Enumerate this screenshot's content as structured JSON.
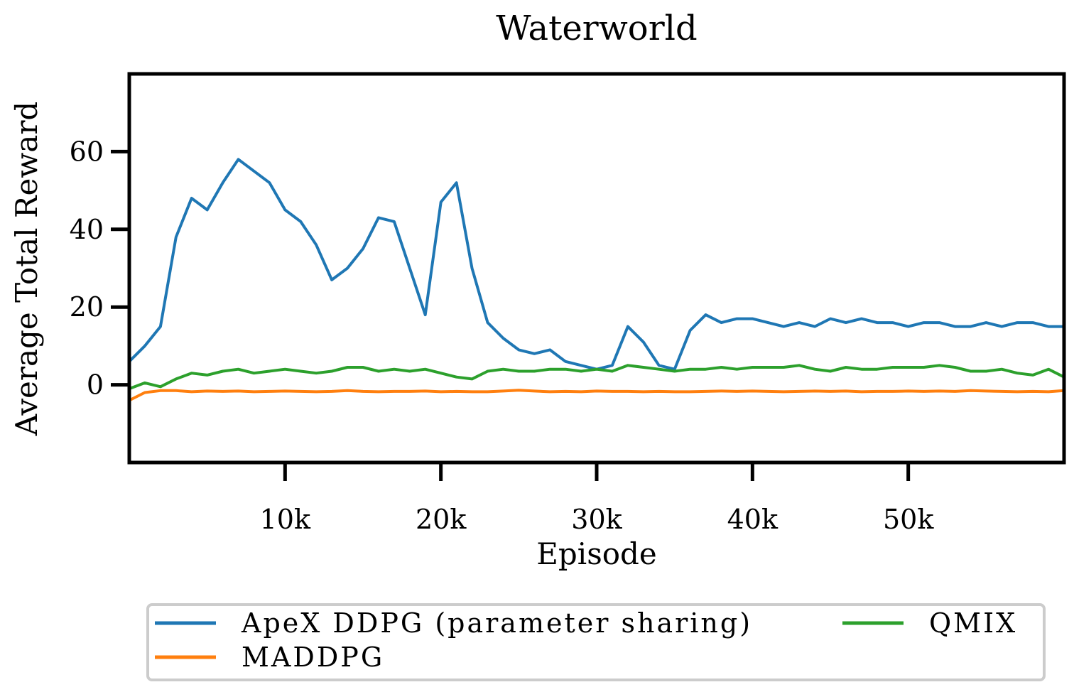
{
  "chart_data": {
    "type": "line",
    "title": "Waterworld",
    "xlabel": "Episode",
    "ylabel": "Average Total Reward",
    "xlim": [
      0,
      60000
    ],
    "ylim": [
      -20,
      80
    ],
    "xticks": [
      10000,
      20000,
      30000,
      40000,
      50000
    ],
    "xtick_labels": [
      "10k",
      "20k",
      "30k",
      "40k",
      "50k"
    ],
    "yticks": [
      0,
      20,
      40,
      60
    ],
    "ytick_labels": [
      "0",
      "20",
      "40",
      "60"
    ],
    "grid": false,
    "legend_placement": "bottom, below axes",
    "series": [
      {
        "name": "ApeX DDPG (parameter sharing)",
        "color": "#1f77b4",
        "x": [
          0,
          1000,
          2000,
          3000,
          4000,
          5000,
          6000,
          7000,
          8000,
          9000,
          10000,
          11000,
          12000,
          13000,
          14000,
          15000,
          16000,
          17000,
          18000,
          19000,
          20000,
          21000,
          22000,
          23000,
          24000,
          25000,
          26000,
          27000,
          28000,
          29000,
          30000,
          31000,
          32000,
          33000,
          34000,
          35000,
          36000,
          37000,
          38000,
          39000,
          40000,
          41000,
          42000,
          43000,
          44000,
          45000,
          46000,
          47000,
          48000,
          49000,
          50000,
          51000,
          52000,
          53000,
          54000,
          55000,
          56000,
          57000,
          58000,
          59000,
          60000
        ],
        "y": [
          6,
          10,
          15,
          38,
          48,
          45,
          52,
          58,
          55,
          52,
          45,
          42,
          36,
          27,
          30,
          35,
          43,
          42,
          30,
          18,
          47,
          52,
          30,
          16,
          12,
          9,
          8,
          9,
          6,
          5,
          4,
          5,
          15,
          11,
          5,
          4,
          14,
          18,
          16,
          17,
          17,
          16,
          15,
          16,
          15,
          17,
          16,
          17,
          16,
          16,
          15,
          16,
          16,
          15,
          15,
          16,
          15,
          16,
          16,
          15,
          15
        ]
      },
      {
        "name": "QMIX",
        "color": "#2ca02c",
        "x": [
          0,
          1000,
          2000,
          3000,
          4000,
          5000,
          6000,
          7000,
          8000,
          9000,
          10000,
          11000,
          12000,
          13000,
          14000,
          15000,
          16000,
          17000,
          18000,
          19000,
          20000,
          21000,
          22000,
          23000,
          24000,
          25000,
          26000,
          27000,
          28000,
          29000,
          30000,
          31000,
          32000,
          33000,
          34000,
          35000,
          36000,
          37000,
          38000,
          39000,
          40000,
          41000,
          42000,
          43000,
          44000,
          45000,
          46000,
          47000,
          48000,
          49000,
          50000,
          51000,
          52000,
          53000,
          54000,
          55000,
          56000,
          57000,
          58000,
          59000,
          60000
        ],
        "y": [
          -1,
          0.5,
          -0.5,
          1.5,
          3,
          2.5,
          3.5,
          4,
          3,
          3.5,
          4,
          3.5,
          3,
          3.5,
          4.5,
          4.5,
          3.5,
          4,
          3.5,
          4,
          3,
          2,
          1.5,
          3.5,
          4,
          3.5,
          3.5,
          4,
          4,
          3.5,
          4,
          3.5,
          5,
          4.5,
          4,
          3.5,
          4,
          4,
          4.5,
          4,
          4.5,
          4.5,
          4.5,
          5,
          4,
          3.5,
          4.5,
          4,
          4,
          4.5,
          4.5,
          4.5,
          5,
          4.5,
          3.5,
          3.5,
          4,
          3,
          2.5,
          4,
          2
        ]
      },
      {
        "name": "MADDPG",
        "color": "#ff7f0e",
        "x": [
          0,
          1000,
          2000,
          3000,
          4000,
          5000,
          6000,
          7000,
          8000,
          9000,
          10000,
          11000,
          12000,
          13000,
          14000,
          15000,
          16000,
          17000,
          18000,
          19000,
          20000,
          21000,
          22000,
          23000,
          24000,
          25000,
          26000,
          27000,
          28000,
          29000,
          30000,
          31000,
          32000,
          33000,
          34000,
          35000,
          36000,
          37000,
          38000,
          39000,
          40000,
          41000,
          42000,
          43000,
          44000,
          45000,
          46000,
          47000,
          48000,
          49000,
          50000,
          51000,
          52000,
          53000,
          54000,
          55000,
          56000,
          57000,
          58000,
          59000,
          60000
        ],
        "y": [
          -4,
          -2,
          -1.5,
          -1.5,
          -1.8,
          -1.6,
          -1.7,
          -1.6,
          -1.8,
          -1.7,
          -1.6,
          -1.7,
          -1.8,
          -1.7,
          -1.5,
          -1.7,
          -1.8,
          -1.7,
          -1.7,
          -1.6,
          -1.8,
          -1.7,
          -1.8,
          -1.8,
          -1.6,
          -1.4,
          -1.6,
          -1.8,
          -1.7,
          -1.8,
          -1.6,
          -1.7,
          -1.7,
          -1.8,
          -1.7,
          -1.8,
          -1.8,
          -1.7,
          -1.6,
          -1.7,
          -1.6,
          -1.7,
          -1.8,
          -1.7,
          -1.6,
          -1.7,
          -1.6,
          -1.8,
          -1.7,
          -1.7,
          -1.6,
          -1.7,
          -1.6,
          -1.7,
          -1.5,
          -1.6,
          -1.7,
          -1.8,
          -1.7,
          -1.8,
          -1.5
        ]
      }
    ]
  }
}
